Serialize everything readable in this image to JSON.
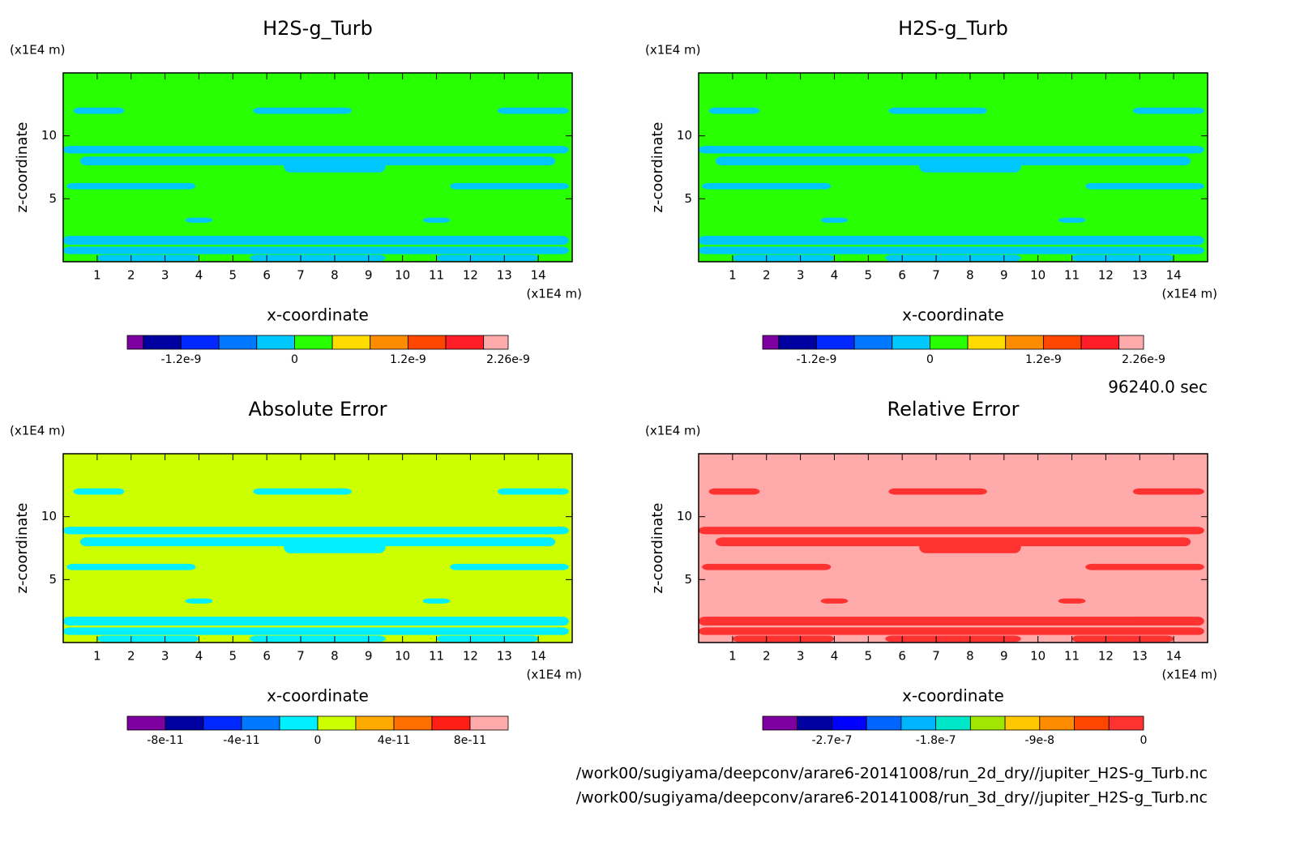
{
  "annotations": {
    "time": "96240.0 sec",
    "files": [
      "/work00/sugiyama/deepconv/arare6-20141008/run_2d_dry//jupiter_H2S-g_Turb.nc",
      "/work00/sugiyama/deepconv/arare6-20141008/run_3d_dry//jupiter_H2S-g_Turb.nc"
    ]
  },
  "chart_data": [
    {
      "type": "contour",
      "title": "H2S-g_Turb",
      "x_unit": "(x1E4 m)",
      "y_unit": "(x1E4 m)",
      "xlabel": "x-coordinate",
      "ylabel": "z-coordinate",
      "xlim": [
        0,
        15
      ],
      "ylim": [
        0,
        15
      ],
      "xticks": [
        1,
        2,
        3,
        4,
        5,
        6,
        7,
        8,
        9,
        10,
        11,
        12,
        13,
        14
      ],
      "yticks": [
        5,
        10
      ],
      "fill_color": "#28ff00",
      "feature_color": "#00c8ff",
      "colorbar": {
        "bounds": [
          -1.77e-09,
          -1.6e-09,
          -1.2e-09,
          -8e-10,
          -4e-10,
          0,
          4e-10,
          8e-10,
          1.2e-09,
          1.6e-09,
          2e-09,
          2.26e-09
        ],
        "colors": [
          "#7f00a0",
          "#0000a0",
          "#0028ff",
          "#0078ff",
          "#00c8ff",
          "#28ff00",
          "#ffdc00",
          "#ff8c00",
          "#ff4600",
          "#ff1e28",
          "#ffaaaa"
        ],
        "ticks": [
          -1.2e-09,
          0,
          1.2e-09,
          2.26e-09
        ]
      }
    },
    {
      "type": "contour",
      "title": "H2S-g_Turb",
      "x_unit": "(x1E4 m)",
      "y_unit": "(x1E4 m)",
      "xlabel": "x-coordinate",
      "ylabel": "z-coordinate",
      "xlim": [
        0,
        15
      ],
      "ylim": [
        0,
        15
      ],
      "xticks": [
        1,
        2,
        3,
        4,
        5,
        6,
        7,
        8,
        9,
        10,
        11,
        12,
        13,
        14
      ],
      "yticks": [
        5,
        10
      ],
      "fill_color": "#28ff00",
      "feature_color": "#00c8ff",
      "colorbar": {
        "bounds": [
          -1.77e-09,
          -1.6e-09,
          -1.2e-09,
          -8e-10,
          -4e-10,
          0,
          4e-10,
          8e-10,
          1.2e-09,
          1.6e-09,
          2e-09,
          2.26e-09
        ],
        "colors": [
          "#7f00a0",
          "#0000a0",
          "#0028ff",
          "#0078ff",
          "#00c8ff",
          "#28ff00",
          "#ffdc00",
          "#ff8c00",
          "#ff4600",
          "#ff1e28",
          "#ffaaaa"
        ],
        "ticks": [
          -1.2e-09,
          0,
          1.2e-09,
          2.26e-09
        ]
      }
    },
    {
      "type": "contour",
      "title": "Absolute Error",
      "x_unit": "(x1E4 m)",
      "y_unit": "(x1E4 m)",
      "xlabel": "x-coordinate",
      "ylabel": "z-coordinate",
      "xlim": [
        0,
        15
      ],
      "ylim": [
        0,
        15
      ],
      "xticks": [
        1,
        2,
        3,
        4,
        5,
        6,
        7,
        8,
        9,
        10,
        11,
        12,
        13,
        14
      ],
      "yticks": [
        5,
        10
      ],
      "fill_color": "#ccff00",
      "feature_color": "#00f0ff",
      "colorbar": {
        "bounds": [
          -1e-10,
          -8e-11,
          -6e-11,
          -4e-11,
          -2e-11,
          0,
          2e-11,
          4e-11,
          6e-11,
          8e-11,
          1e-10
        ],
        "colors": [
          "#7f00a0",
          "#0000a0",
          "#0028ff",
          "#0078ff",
          "#00f0ff",
          "#ccff00",
          "#ffaa00",
          "#ff6e00",
          "#ff1e14",
          "#ffaaaa"
        ],
        "ticks": [
          -8e-11,
          -4e-11,
          0,
          4e-11,
          8e-11
        ]
      }
    },
    {
      "type": "contour",
      "title": "Relative Error",
      "x_unit": "(x1E4 m)",
      "y_unit": "(x1E4 m)",
      "xlabel": "x-coordinate",
      "ylabel": "z-coordinate",
      "xlim": [
        0,
        15
      ],
      "ylim": [
        0,
        15
      ],
      "xticks": [
        1,
        2,
        3,
        4,
        5,
        6,
        7,
        8,
        9,
        10,
        11,
        12,
        13,
        14
      ],
      "yticks": [
        5,
        10
      ],
      "fill_color": "#ffaaaa",
      "feature_color": "#ff3232",
      "colorbar": {
        "bounds": [
          -3.3e-07,
          -3e-07,
          -2.7e-07,
          -2.4e-07,
          -2.1e-07,
          -1.8e-07,
          -1.5e-07,
          -1.2e-07,
          -9e-08,
          -6e-08,
          -3e-08,
          0
        ],
        "colors": [
          "#7f00a0",
          "#0000a0",
          "#0000ff",
          "#0064ff",
          "#00b4ff",
          "#00e6c8",
          "#a0e600",
          "#ffc800",
          "#ff8c00",
          "#ff4600",
          "#ff3232"
        ],
        "ticks": [
          -2.7e-07,
          -1.8e-07,
          -9e-08,
          0
        ]
      }
    }
  ]
}
